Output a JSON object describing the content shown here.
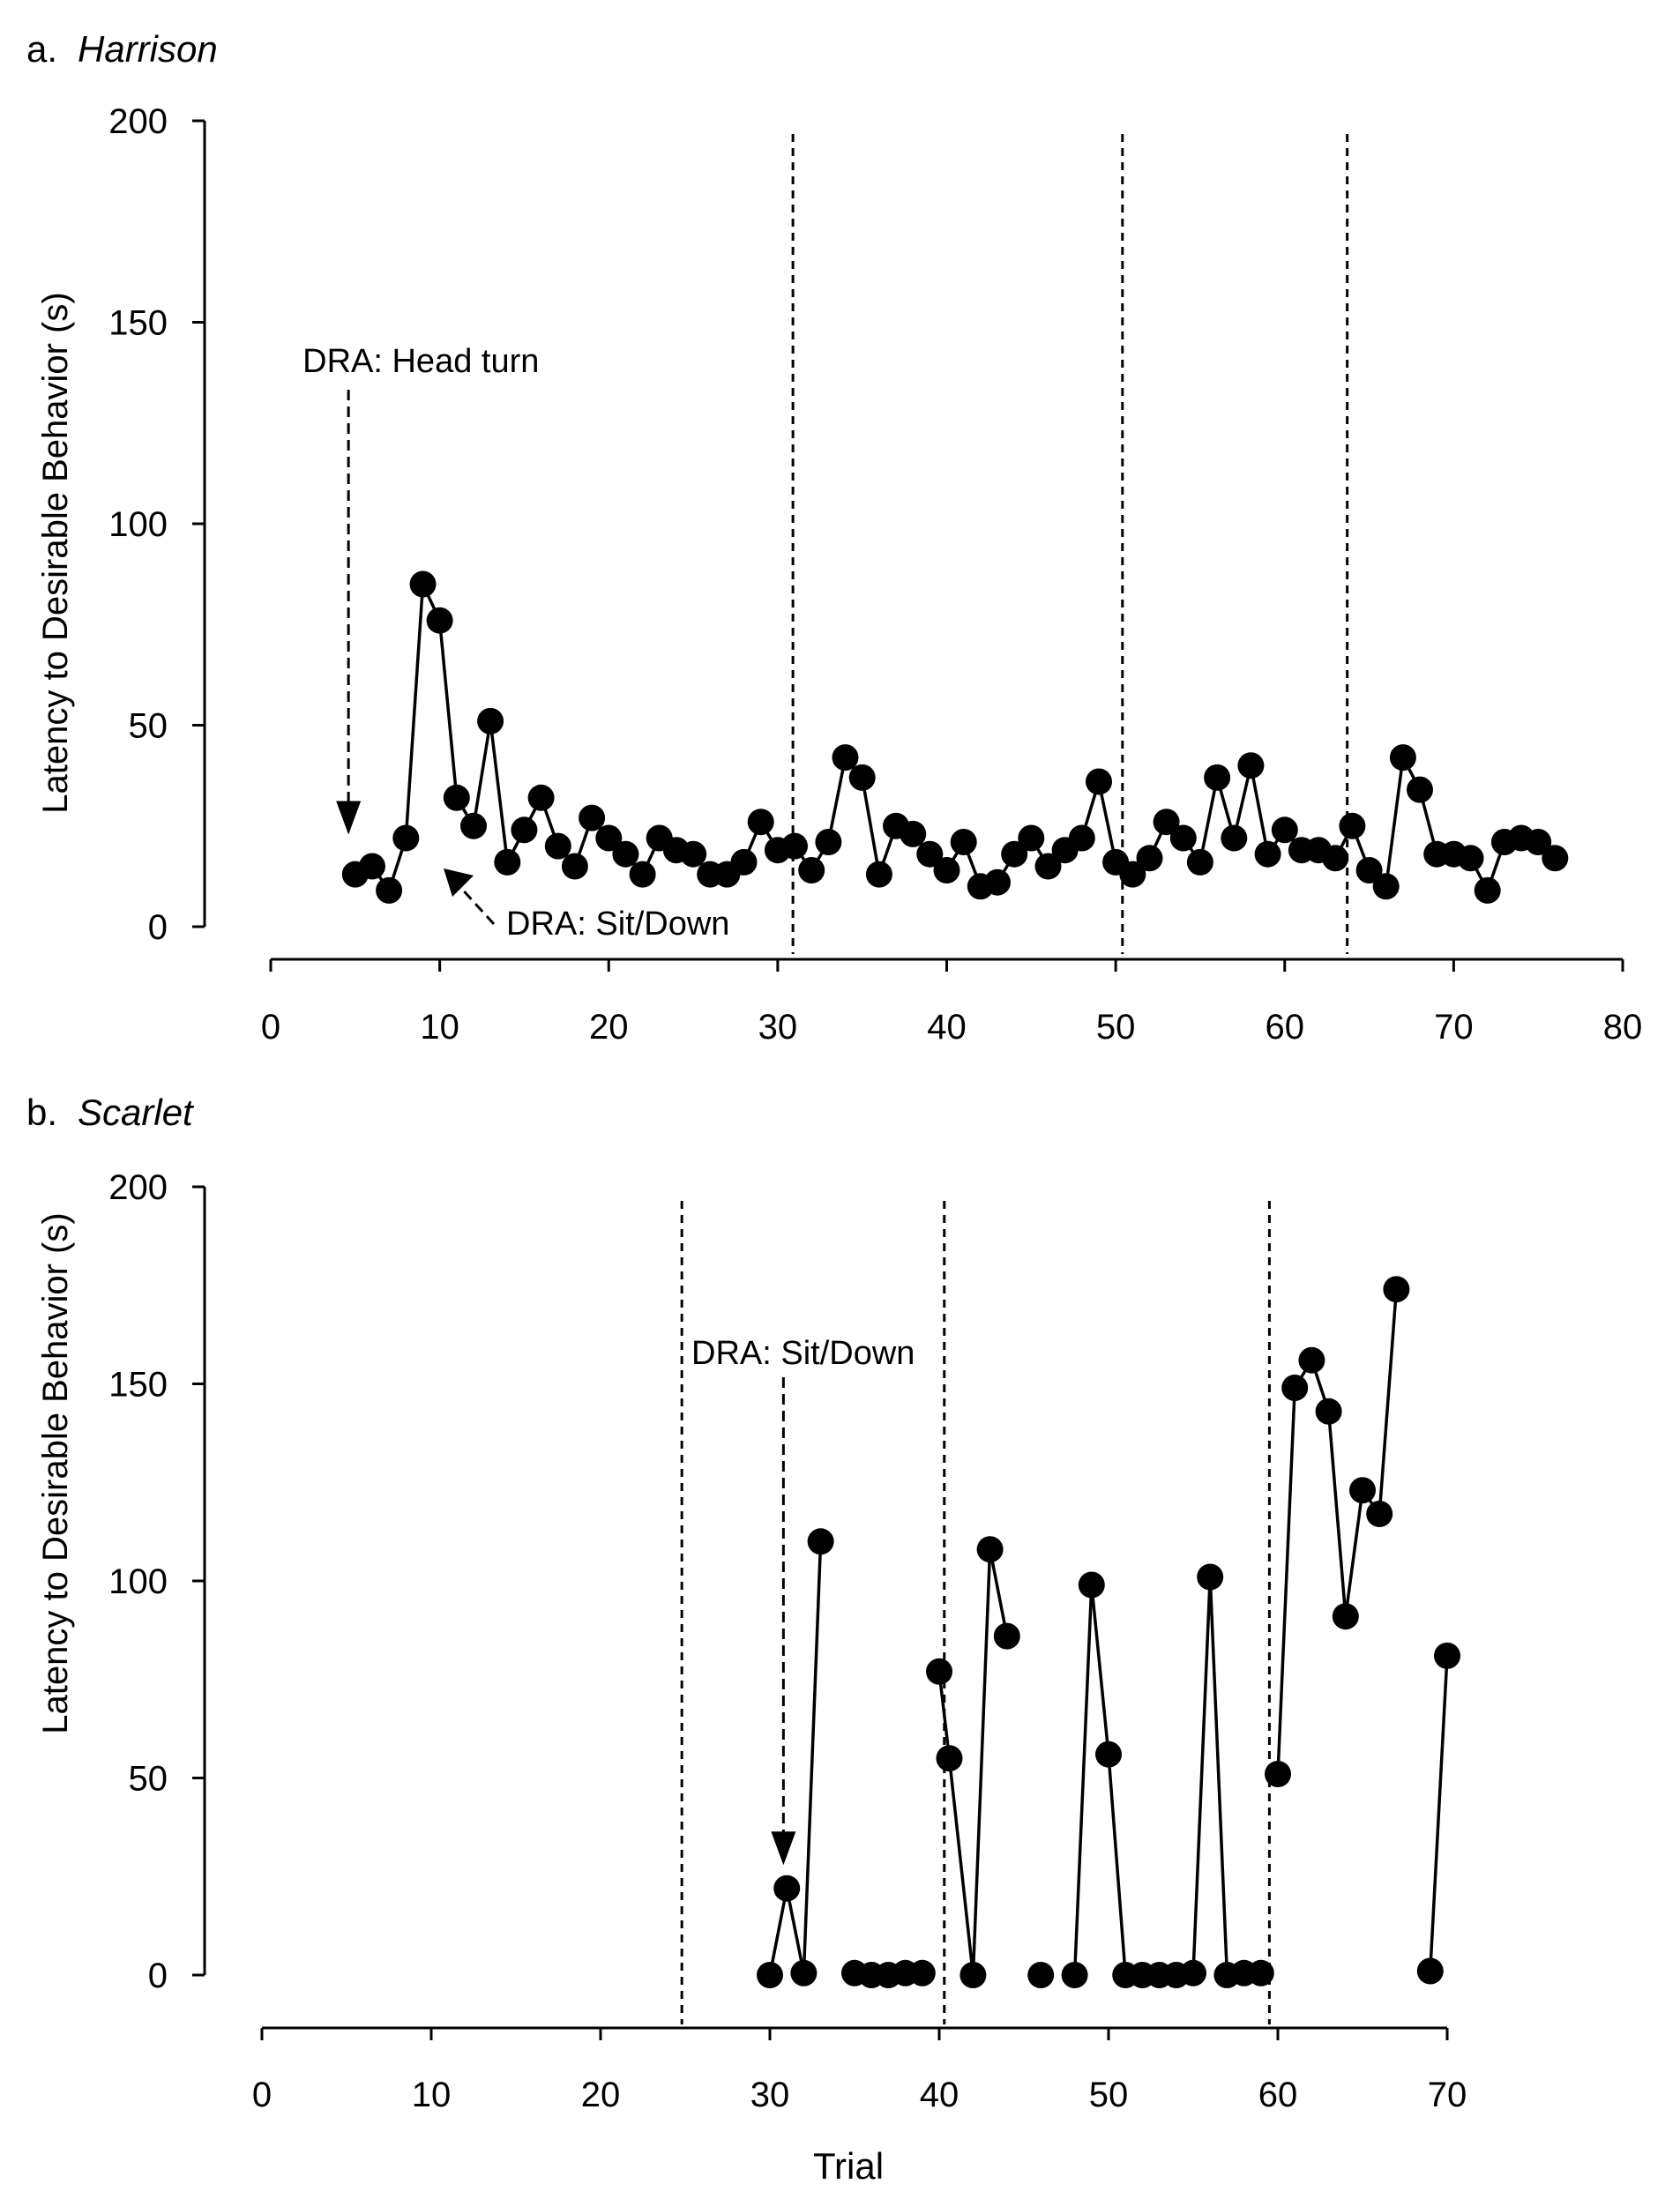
{
  "chart_data": [
    {
      "type": "line",
      "panel_letter": "a.",
      "title": "Harrison",
      "xlabel": "",
      "ylabel": "Latency to Desirable Behavior (s)",
      "xlim": [
        0,
        80
      ],
      "ylim": [
        0,
        200
      ],
      "xticks": [
        "0",
        "10",
        "20",
        "30",
        "40",
        "50",
        "60",
        "70",
        "80"
      ],
      "yticks": [
        "0",
        "50",
        "100",
        "150",
        "200"
      ],
      "phase_lines_x": [
        30.9,
        50.4,
        63.7
      ],
      "annotations": [
        {
          "text": "DRA: Head turn",
          "target_x": 4.6,
          "target_y": 22,
          "style": "dashed-arrow-down"
        },
        {
          "text": "DRA: Sit/Down",
          "target_x": 10,
          "target_y": 15,
          "style": "dashed-arrow-up-left"
        }
      ],
      "series": [
        {
          "name": "Harrison",
          "segments": [
            {
              "x": [
                5,
                6,
                7,
                8,
                9,
                10,
                11,
                12,
                13,
                14,
                15,
                16,
                17,
                18,
                19,
                20,
                21,
                22,
                23,
                24,
                25,
                26,
                27,
                28,
                29,
                30,
                31,
                32,
                33,
                34,
                35,
                36,
                37,
                38,
                39,
                40,
                41,
                42,
                43,
                44,
                45,
                46,
                47,
                48,
                49,
                50,
                51,
                52,
                53,
                54,
                55,
                56,
                57,
                58,
                59,
                60,
                61,
                62,
                63,
                64,
                65,
                66,
                67,
                68,
                69,
                70,
                71,
                72,
                73,
                74,
                75,
                76
              ],
              "y": [
                13,
                15,
                9,
                22,
                85,
                76,
                32,
                25,
                51,
                16,
                24,
                32,
                20,
                15,
                27,
                22,
                18,
                13,
                22,
                19,
                18,
                13,
                13,
                16,
                26,
                19,
                20,
                14,
                21,
                42,
                37,
                13,
                25,
                23,
                18,
                14,
                21,
                10,
                11,
                18,
                22,
                15,
                19,
                22,
                36,
                16,
                13,
                17,
                26,
                22,
                16,
                37,
                22,
                40,
                18,
                24,
                19,
                19,
                17,
                25,
                14,
                10,
                42,
                34,
                18,
                18,
                17,
                9,
                21,
                22,
                21,
                17
              ]
            }
          ]
        }
      ]
    },
    {
      "type": "line",
      "panel_letter": "b.",
      "title": "Scarlet",
      "xlabel": "Trial",
      "ylabel": "Latency to Desirable Behavior (s)",
      "xlim": [
        0,
        70
      ],
      "ylim": [
        0,
        200
      ],
      "xticks": [
        "0",
        "10",
        "20",
        "30",
        "40",
        "50",
        "60",
        "70"
      ],
      "yticks": [
        "0",
        "50",
        "100",
        "150",
        "200"
      ],
      "phase_lines_x": [
        24.8,
        40.3,
        59.5
      ],
      "annotations": [
        {
          "text": "DRA: Sit/Down",
          "target_x": 30.8,
          "target_y": 27,
          "style": "dashed-arrow-down"
        }
      ],
      "series": [
        {
          "name": "Scarlet",
          "segments": [
            {
              "x": [
                30,
                31,
                32,
                33
              ],
              "y": [
                0,
                22,
                0.5,
                110
              ]
            },
            {
              "x": [
                35,
                36,
                37,
                38,
                39
              ],
              "y": [
                0.5,
                0,
                0,
                0.5,
                0.5
              ]
            },
            {
              "x": [
                40,
                40.6,
                42,
                43,
                44
              ],
              "y": [
                77,
                55,
                0,
                108,
                86
              ]
            },
            {
              "x": [
                46
              ],
              "y": [
                0
              ]
            },
            {
              "x": [
                48,
                49,
                50,
                51,
                52,
                53,
                54,
                55,
                56,
                57,
                58,
                59
              ],
              "y": [
                0,
                99,
                56,
                0,
                0,
                0,
                0,
                0.5,
                101,
                0,
                0.5,
                0.5
              ]
            },
            {
              "x": [
                60,
                61,
                62,
                63,
                64,
                65,
                66,
                67
              ],
              "y": [
                51,
                149,
                156,
                143,
                91,
                123,
                117,
                174
              ]
            },
            {
              "x": [
                69,
                70
              ],
              "y": [
                1,
                81
              ]
            }
          ]
        }
      ]
    }
  ]
}
